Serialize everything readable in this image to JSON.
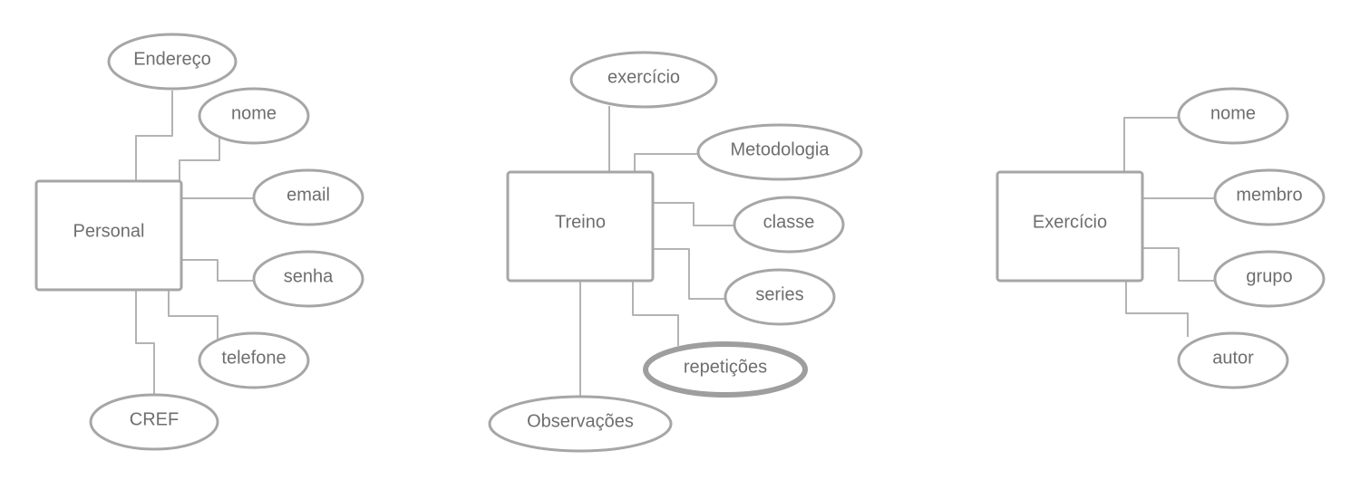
{
  "entities": {
    "personal": {
      "label": "Personal",
      "attributes": {
        "endereco": "Endereço",
        "nome": "nome",
        "email": "email",
        "senha": "senha",
        "telefone": "telefone",
        "cref": "CREF"
      }
    },
    "treino": {
      "label": "Treino",
      "attributes": {
        "exercicio": "exercício",
        "metodologia": "Metodologia",
        "classe": "classe",
        "series": "series",
        "repeticoes": "repetições",
        "observacoes": "Observações"
      }
    },
    "exercicio": {
      "label": "Exercício",
      "attributes": {
        "nome": "nome",
        "membro": "membro",
        "grupo": "grupo",
        "autor": "autor"
      }
    }
  },
  "style": {
    "line_color": "#b3b3b3",
    "shape_stroke": "#a6a6a6",
    "text_color": "#6e6e6e",
    "background": "#ffffff"
  }
}
